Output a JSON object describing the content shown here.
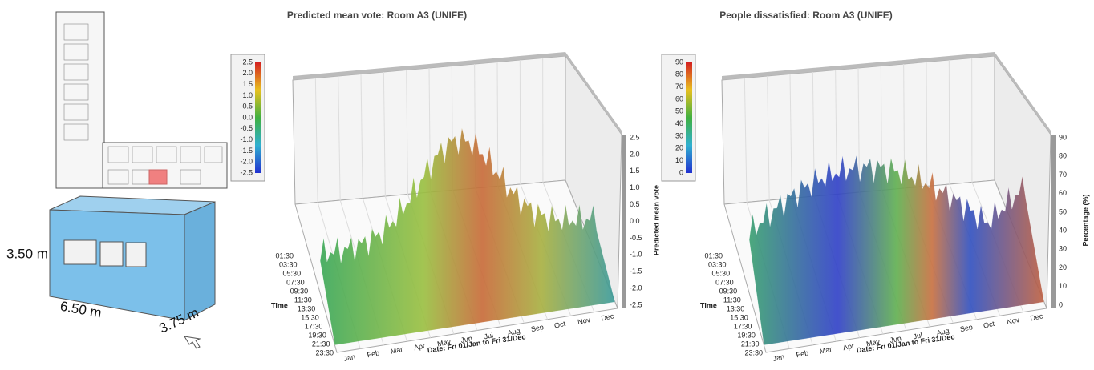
{
  "room": {
    "height": "3.50 m",
    "length": "6.50 m",
    "width": "3.75 m"
  },
  "charts": [
    {
      "title": "Predicted mean vote: Room A3 (UNIFE)",
      "colorbar_ticks": [
        "2.5",
        "2.0",
        "1.5",
        "1.0",
        "0.5",
        "0.0",
        "-0.5",
        "-1.0",
        "-1.5",
        "-2.0",
        "-2.5"
      ],
      "z_ticks": [
        "2.5",
        "2.0",
        "1.5",
        "1.0",
        "0.5",
        "0.0",
        "-0.5",
        "-1.0",
        "-1.5",
        "-2.0",
        "-2.5"
      ],
      "z_label": "Predicted mean vote",
      "y_label": "Time",
      "times": [
        "01:30",
        "03:30",
        "05:30",
        "07:30",
        "09:30",
        "11:30",
        "13:30",
        "15:30",
        "17:30",
        "19:30",
        "21:30",
        "23:30"
      ],
      "x_label": "Date: Fri 01/Jan to Fri 31/Dec",
      "months": [
        "Jan",
        "Feb",
        "Mar",
        "Apr",
        "May",
        "Jun",
        "Jul",
        "Aug",
        "Sep",
        "Oct",
        "Nov",
        "Dec"
      ]
    },
    {
      "title": "People dissatisfied: Room A3 (UNIFE)",
      "colorbar_ticks": [
        "90",
        "80",
        "70",
        "60",
        "50",
        "40",
        "30",
        "20",
        "10",
        "0"
      ],
      "z_ticks": [
        "90",
        "80",
        "70",
        "60",
        "50",
        "40",
        "30",
        "20",
        "10",
        "0"
      ],
      "z_label": "Percentage (%)",
      "y_label": "Time",
      "times": [
        "01:30",
        "03:30",
        "05:30",
        "07:30",
        "09:30",
        "11:30",
        "13:30",
        "15:30",
        "17:30",
        "19:30",
        "21:30",
        "23:30"
      ],
      "x_label": "Date: Fri 01/Jan to Fri 31/Dec",
      "months": [
        "Jan",
        "Feb",
        "Mar",
        "Apr",
        "May",
        "Jun",
        "Jul",
        "Aug",
        "Sep",
        "Oct",
        "Nov",
        "Dec"
      ]
    }
  ]
}
